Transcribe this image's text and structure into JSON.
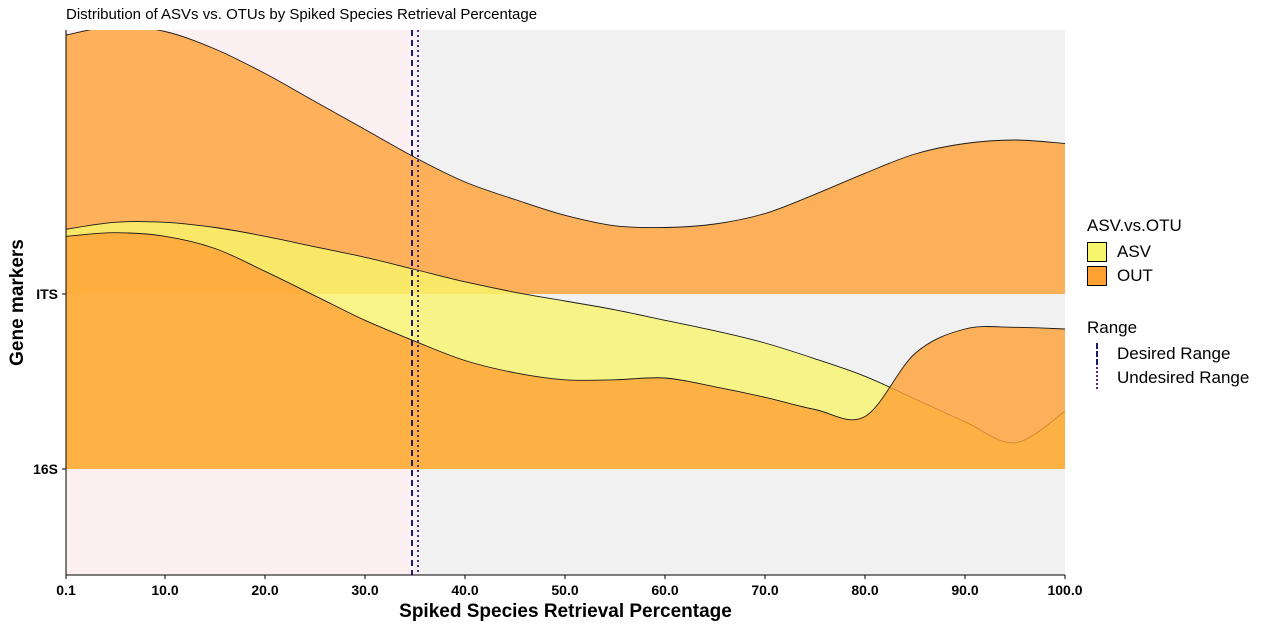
{
  "chart_data": {
    "type": "ridgeline-density",
    "title": "Distribution of ASVs vs. OTUs by Spiked Species Retrieval Percentage",
    "xlabel": "Spiked Species Retrieval Percentage",
    "ylabel": "Gene markers",
    "xlim": [
      0.1,
      100.0
    ],
    "x_ticks": [
      "0.1",
      "10.0",
      "20.0",
      "30.0",
      "40.0",
      "50.0",
      "60.0",
      "70.0",
      "80.0",
      "90.0",
      "100.0"
    ],
    "y_categories": [
      "16S",
      "ITS"
    ],
    "desired_range": [
      0.1,
      35.0
    ],
    "undesired_range": [
      35.0,
      100.0
    ],
    "vlines": [
      {
        "label": "Desired Range",
        "x": 34.7,
        "style": "dashed"
      },
      {
        "label": "Undesired Range",
        "x": 35.3,
        "style": "dotted"
      }
    ],
    "legend_fill": {
      "title": "ASV.vs.OTU",
      "items": [
        {
          "label": "ASV",
          "color": "#f7f56b"
        },
        {
          "label": "OUT",
          "color": "#ffa033"
        }
      ]
    },
    "legend_line": {
      "title": "Range",
      "items": [
        {
          "label": "Desired Range",
          "style": "dashed"
        },
        {
          "label": "Undesired Range",
          "style": "dotted"
        }
      ]
    },
    "series": [
      {
        "marker": "ITS",
        "group": "OUT",
        "x": [
          0,
          5,
          10,
          15,
          20,
          25,
          30,
          35,
          40,
          45,
          50,
          55,
          60,
          65,
          70,
          75,
          80,
          85,
          90,
          95,
          100
        ],
        "density": [
          1.48,
          1.53,
          1.5,
          1.4,
          1.26,
          1.1,
          0.94,
          0.78,
          0.64,
          0.54,
          0.45,
          0.39,
          0.38,
          0.4,
          0.46,
          0.57,
          0.69,
          0.8,
          0.86,
          0.88,
          0.86
        ]
      },
      {
        "marker": "16S",
        "group": "ASV",
        "x": [
          0,
          5,
          10,
          15,
          20,
          25,
          30,
          35,
          40,
          45,
          50,
          55,
          60,
          65,
          70,
          75,
          80,
          85,
          90,
          95,
          100
        ],
        "density": [
          1.37,
          1.41,
          1.41,
          1.38,
          1.33,
          1.27,
          1.21,
          1.14,
          1.07,
          1.01,
          0.96,
          0.91,
          0.85,
          0.79,
          0.72,
          0.63,
          0.53,
          0.4,
          0.27,
          0.15,
          0.33
        ]
      },
      {
        "marker": "16S",
        "group": "OUT",
        "x": [
          0,
          5,
          10,
          15,
          20,
          25,
          30,
          35,
          40,
          45,
          50,
          55,
          60,
          65,
          70,
          75,
          80,
          85,
          90,
          95,
          100
        ],
        "density": [
          1.33,
          1.35,
          1.33,
          1.26,
          1.13,
          0.99,
          0.85,
          0.73,
          0.62,
          0.55,
          0.51,
          0.51,
          0.52,
          0.47,
          0.41,
          0.34,
          0.3,
          0.66,
          0.8,
          0.81,
          0.8
        ]
      }
    ],
    "grid": false,
    "legend_position": "right"
  }
}
